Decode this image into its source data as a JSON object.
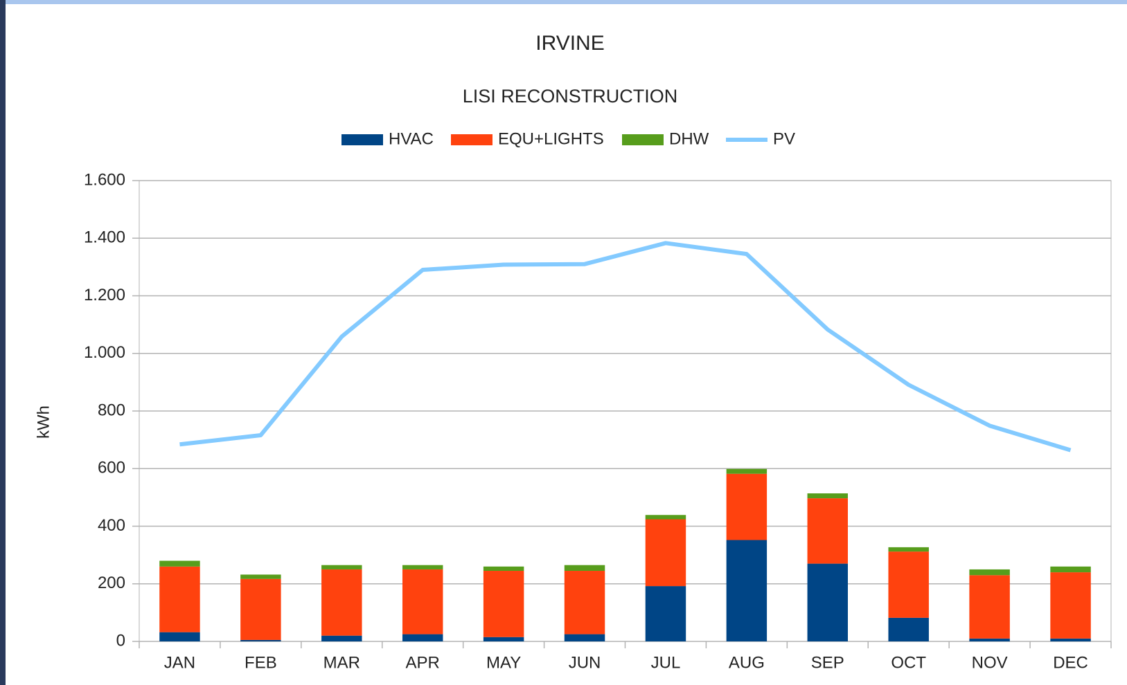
{
  "chart_data": {
    "type": "bar",
    "title": "IRVINE",
    "subtitle": "LISI RECONSTRUCTION",
    "y_label": "kWh",
    "categories": [
      "JAN",
      "FEB",
      "MAR",
      "APR",
      "MAY",
      "JUN",
      "JUL",
      "AUG",
      "SEP",
      "OCT",
      "NOV",
      "DEC"
    ],
    "series": [
      {
        "name": "HVAC",
        "color": "#004586",
        "type": "bar",
        "values": [
          32,
          5,
          20,
          25,
          15,
          25,
          192,
          352,
          270,
          82,
          10,
          10
        ]
      },
      {
        "name": "EQU+LIGHTS",
        "color": "#ff420e",
        "type": "bar",
        "values": [
          228,
          212,
          230,
          225,
          230,
          220,
          232,
          230,
          227,
          230,
          220,
          230
        ]
      },
      {
        "name": "DHW",
        "color": "#579d1c",
        "type": "bar",
        "values": [
          20,
          15,
          15,
          15,
          15,
          20,
          15,
          17,
          17,
          15,
          20,
          20
        ]
      },
      {
        "name": "PV",
        "color": "#83caff",
        "type": "line",
        "values": [
          684,
          716,
          1058,
          1290,
          1308,
          1310,
          1383,
          1345,
          1083,
          891,
          749,
          664
        ]
      }
    ],
    "stacked": true,
    "ylim": [
      0,
      1600
    ],
    "yticks": [
      0,
      200,
      400,
      600,
      800,
      {
        "value": 1000,
        "label": "1.000"
      },
      {
        "value": 1200,
        "label": "1.200"
      },
      {
        "value": 1400,
        "label": "1.400"
      },
      {
        "value": 1600,
        "label": "1.600"
      }
    ],
    "grid": true,
    "legend": "top"
  }
}
